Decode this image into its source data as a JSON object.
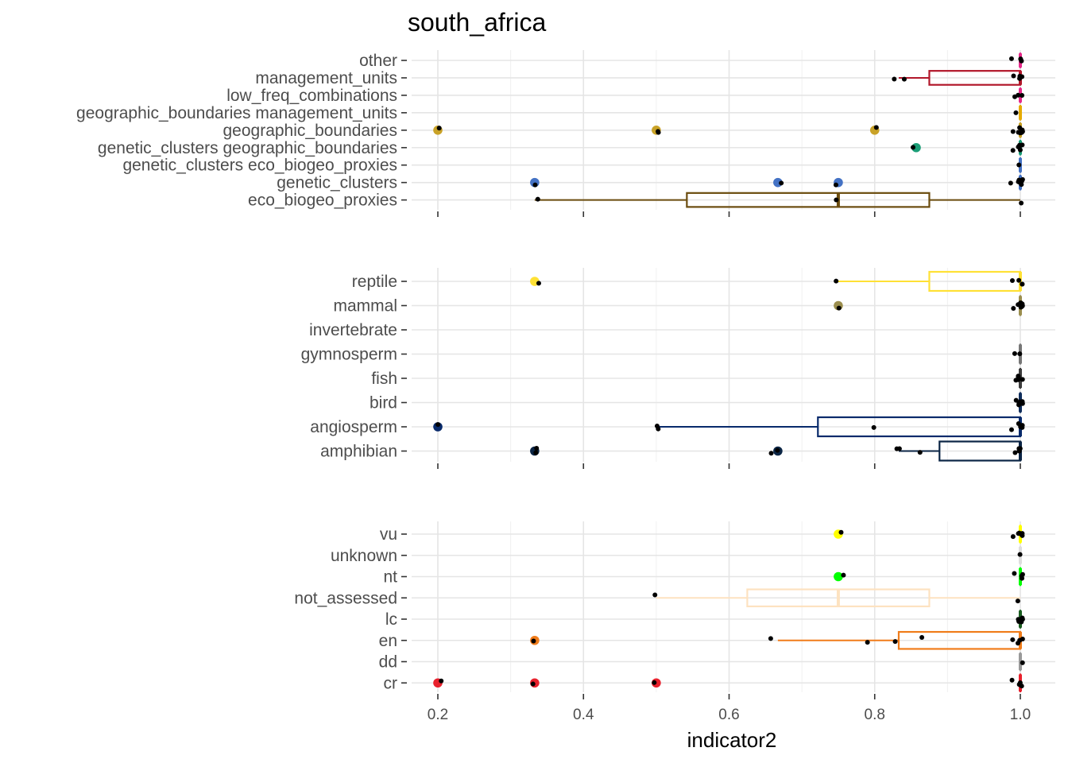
{
  "chart_data": {
    "type": "boxplot",
    "title": "south_africa",
    "xlabel": "indicator2",
    "ylabel": "",
    "xlim": [
      0.16,
      1.04
    ],
    "x_ticks": [
      0.2,
      0.4,
      0.6,
      0.8,
      1.0
    ],
    "x_tick_labels": [
      "0.2",
      "0.4",
      "0.6",
      "0.8",
      "1.0"
    ],
    "grid": true,
    "legend": "none",
    "panels": [
      {
        "categories": [
          {
            "label": "other",
            "color": "#e7298a",
            "box": {
              "min": 1.0,
              "q1": 1.0,
              "median": 1.0,
              "q3": 1.0,
              "max": 1.0
            },
            "outliers": [],
            "points": [
              0.99,
              1.0,
              1.0
            ]
          },
          {
            "label": "management_units",
            "color": "#b2182b",
            "box": {
              "min": 0.833,
              "q1": 0.875,
              "median": 1.0,
              "q3": 1.0,
              "max": 1.0
            },
            "outliers": [],
            "points": [
              0.83,
              0.84,
              0.99,
              1.0,
              1.0,
              1.0,
              1.0
            ]
          },
          {
            "label": "low_freq_combinations",
            "color": "#e7298a",
            "box": {
              "min": 1.0,
              "q1": 1.0,
              "median": 1.0,
              "q3": 1.0,
              "max": 1.0
            },
            "outliers": [],
            "points": [
              0.99,
              1.0,
              1.0
            ]
          },
          {
            "label": "geographic_boundaries management_units",
            "color": "#e6ab02",
            "box": {
              "min": 1.0,
              "q1": 1.0,
              "median": 1.0,
              "q3": 1.0,
              "max": 1.0
            },
            "outliers": [],
            "points": [
              0.995
            ]
          },
          {
            "label": "geographic_boundaries",
            "color": "#c9a227",
            "box": {
              "min": 1.0,
              "q1": 1.0,
              "median": 1.0,
              "q3": 1.0,
              "max": 1.0
            },
            "outliers": [
              0.2,
              0.5,
              0.8
            ],
            "points": [
              0.2,
              0.5,
              0.502,
              0.805,
              0.99,
              1.0,
              1.0,
              1.0,
              1.0,
              1.0,
              1.0,
              1.0,
              1.0,
              1.0
            ]
          },
          {
            "label": "genetic_clusters geographic_boundaries",
            "color": "#1b9e77",
            "box": {
              "min": 1.0,
              "q1": 1.0,
              "median": 1.0,
              "q3": 1.0,
              "max": 1.0
            },
            "outliers": [
              0.857
            ],
            "points": [
              0.85,
              0.99,
              1.0,
              1.0,
              1.0,
              1.0,
              1.0
            ]
          },
          {
            "label": "genetic_clusters eco_biogeo_proxies",
            "color": "#4472c4",
            "box": {
              "min": 1.0,
              "q1": 1.0,
              "median": 1.0,
              "q3": 1.0,
              "max": 1.0
            },
            "outliers": [],
            "points": [
              0.998
            ]
          },
          {
            "label": "genetic_clusters",
            "color": "#4472c4",
            "box": {
              "min": 1.0,
              "q1": 1.0,
              "median": 1.0,
              "q3": 1.0,
              "max": 1.0
            },
            "outliers": [
              0.333,
              0.667,
              0.75
            ],
            "points": [
              0.333,
              0.672,
              0.747,
              0.99,
              1.0,
              1.0,
              1.0,
              1.0,
              1.0,
              1.0,
              1.0
            ]
          },
          {
            "label": "eco_biogeo_proxies",
            "color": "#6b4c0e",
            "box": {
              "min": 0.333,
              "q1": 0.542,
              "median": 0.75,
              "q3": 0.875,
              "max": 1.0
            },
            "outliers": [],
            "points": [
              0.34,
              0.747,
              1.002
            ]
          }
        ]
      },
      {
        "categories": [
          {
            "label": "reptile",
            "color": "#ffe135",
            "box": {
              "min": 0.75,
              "q1": 0.875,
              "median": 1.0,
              "q3": 1.0,
              "max": 1.0
            },
            "outliers": [
              0.333
            ],
            "points": [
              0.338,
              0.75,
              0.99,
              1.0,
              1.0,
              1.0
            ]
          },
          {
            "label": "mammal",
            "color": "#9b8e4e",
            "box": {
              "min": 1.0,
              "q1": 1.0,
              "median": 1.0,
              "q3": 1.0,
              "max": 1.0
            },
            "outliers": [
              0.75
            ],
            "points": [
              0.748,
              0.99,
              1.0,
              1.0,
              1.0,
              1.0,
              1.0,
              1.0,
              1.0,
              1.0
            ]
          },
          {
            "label": "invertebrate",
            "color": "#666666",
            "box": null,
            "outliers": [],
            "points": []
          },
          {
            "label": "gymnosperm",
            "color": "#777777",
            "box": {
              "min": 1.0,
              "q1": 1.0,
              "median": 1.0,
              "q3": 1.0,
              "max": 1.0
            },
            "outliers": [],
            "points": [
              0.995,
              1.0
            ]
          },
          {
            "label": "fish",
            "color": "#3d3d3d",
            "box": {
              "min": 1.0,
              "q1": 1.0,
              "median": 1.0,
              "q3": 1.0,
              "max": 1.0
            },
            "outliers": [],
            "points": [
              0.995,
              1.0,
              1.0,
              1.0,
              1.0
            ]
          },
          {
            "label": "bird",
            "color": "#0f2d5c",
            "box": {
              "min": 1.0,
              "q1": 1.0,
              "median": 1.0,
              "q3": 1.0,
              "max": 1.0
            },
            "outliers": [],
            "points": [
              0.995,
              1.0,
              1.0,
              1.0,
              1.0,
              1.0
            ]
          },
          {
            "label": "angiosperm",
            "color": "#082a6b",
            "box": {
              "min": 0.5,
              "q1": 0.722,
              "median": 1.0,
              "q3": 1.0,
              "max": 1.0
            },
            "outliers": [
              0.2
            ],
            "points": [
              0.2,
              0.502,
              0.505,
              0.797,
              0.99,
              1.0,
              1.0,
              1.0,
              1.0
            ]
          },
          {
            "label": "amphibian",
            "color": "#0b2545",
            "box": {
              "min": 0.833,
              "q1": 0.889,
              "median": 1.0,
              "q3": 1.0,
              "max": 1.0
            },
            "outliers": [
              0.333,
              0.667
            ],
            "points": [
              0.333,
              0.338,
              0.66,
              0.667,
              0.832,
              0.833,
              0.86,
              0.99,
              1.0,
              1.0,
              1.0,
              1.0,
              1.0
            ]
          }
        ]
      },
      {
        "categories": [
          {
            "label": "vu",
            "color": "#ffff00",
            "box": {
              "min": 1.0,
              "q1": 1.0,
              "median": 1.0,
              "q3": 1.0,
              "max": 1.0
            },
            "outliers": [
              0.75
            ],
            "points": [
              0.753,
              0.99,
              1.0,
              1.0,
              1.0,
              1.0,
              1.0
            ]
          },
          {
            "label": "unknown",
            "color": "#dddddd",
            "box": {
              "min": 1.0,
              "q1": 1.0,
              "median": 1.0,
              "q3": 1.0,
              "max": 1.0
            },
            "outliers": [],
            "points": [
              1.002
            ]
          },
          {
            "label": "nt",
            "color": "#00ff00",
            "box": {
              "min": 1.0,
              "q1": 1.0,
              "median": 1.0,
              "q3": 1.0,
              "max": 1.0
            },
            "outliers": [
              0.75
            ],
            "points": [
              0.755,
              0.99,
              1.0,
              1.0,
              1.0
            ]
          },
          {
            "label": "not_assessed",
            "color": "#fde2c0",
            "box": {
              "min": 0.5,
              "q1": 0.625,
              "median": 0.75,
              "q3": 0.875,
              "max": 1.0
            },
            "outliers": [],
            "points": [
              0.5,
              0.996
            ]
          },
          {
            "label": "lc",
            "color": "#1a5e20",
            "box": {
              "min": 1.0,
              "q1": 1.0,
              "median": 1.0,
              "q3": 1.0,
              "max": 1.0
            },
            "outliers": [],
            "points": [
              0.995,
              1.0,
              1.0,
              1.0,
              1.0,
              1.0,
              1.0,
              1.0
            ]
          },
          {
            "label": "en",
            "color": "#f07c1a",
            "box": {
              "min": 0.667,
              "q1": 0.833,
              "median": 1.0,
              "q3": 1.0,
              "max": 1.0
            },
            "outliers": [
              0.333
            ],
            "points": [
              0.333,
              0.66,
              0.79,
              0.83,
              0.865,
              0.99,
              1.0,
              1.0,
              1.0
            ]
          },
          {
            "label": "dd",
            "color": "#999999",
            "box": {
              "min": 1.0,
              "q1": 1.0,
              "median": 1.0,
              "q3": 1.0,
              "max": 1.0
            },
            "outliers": [],
            "points": [
              1.005
            ]
          },
          {
            "label": "cr",
            "color": "#e8212d",
            "box": {
              "min": 1.0,
              "q1": 1.0,
              "median": 1.0,
              "q3": 1.0,
              "max": 1.0
            },
            "outliers": [
              0.2,
              0.333,
              0.5
            ],
            "points": [
              0.205,
              0.333,
              0.5,
              0.99,
              1.0,
              1.0,
              1.0
            ]
          }
        ]
      }
    ]
  }
}
